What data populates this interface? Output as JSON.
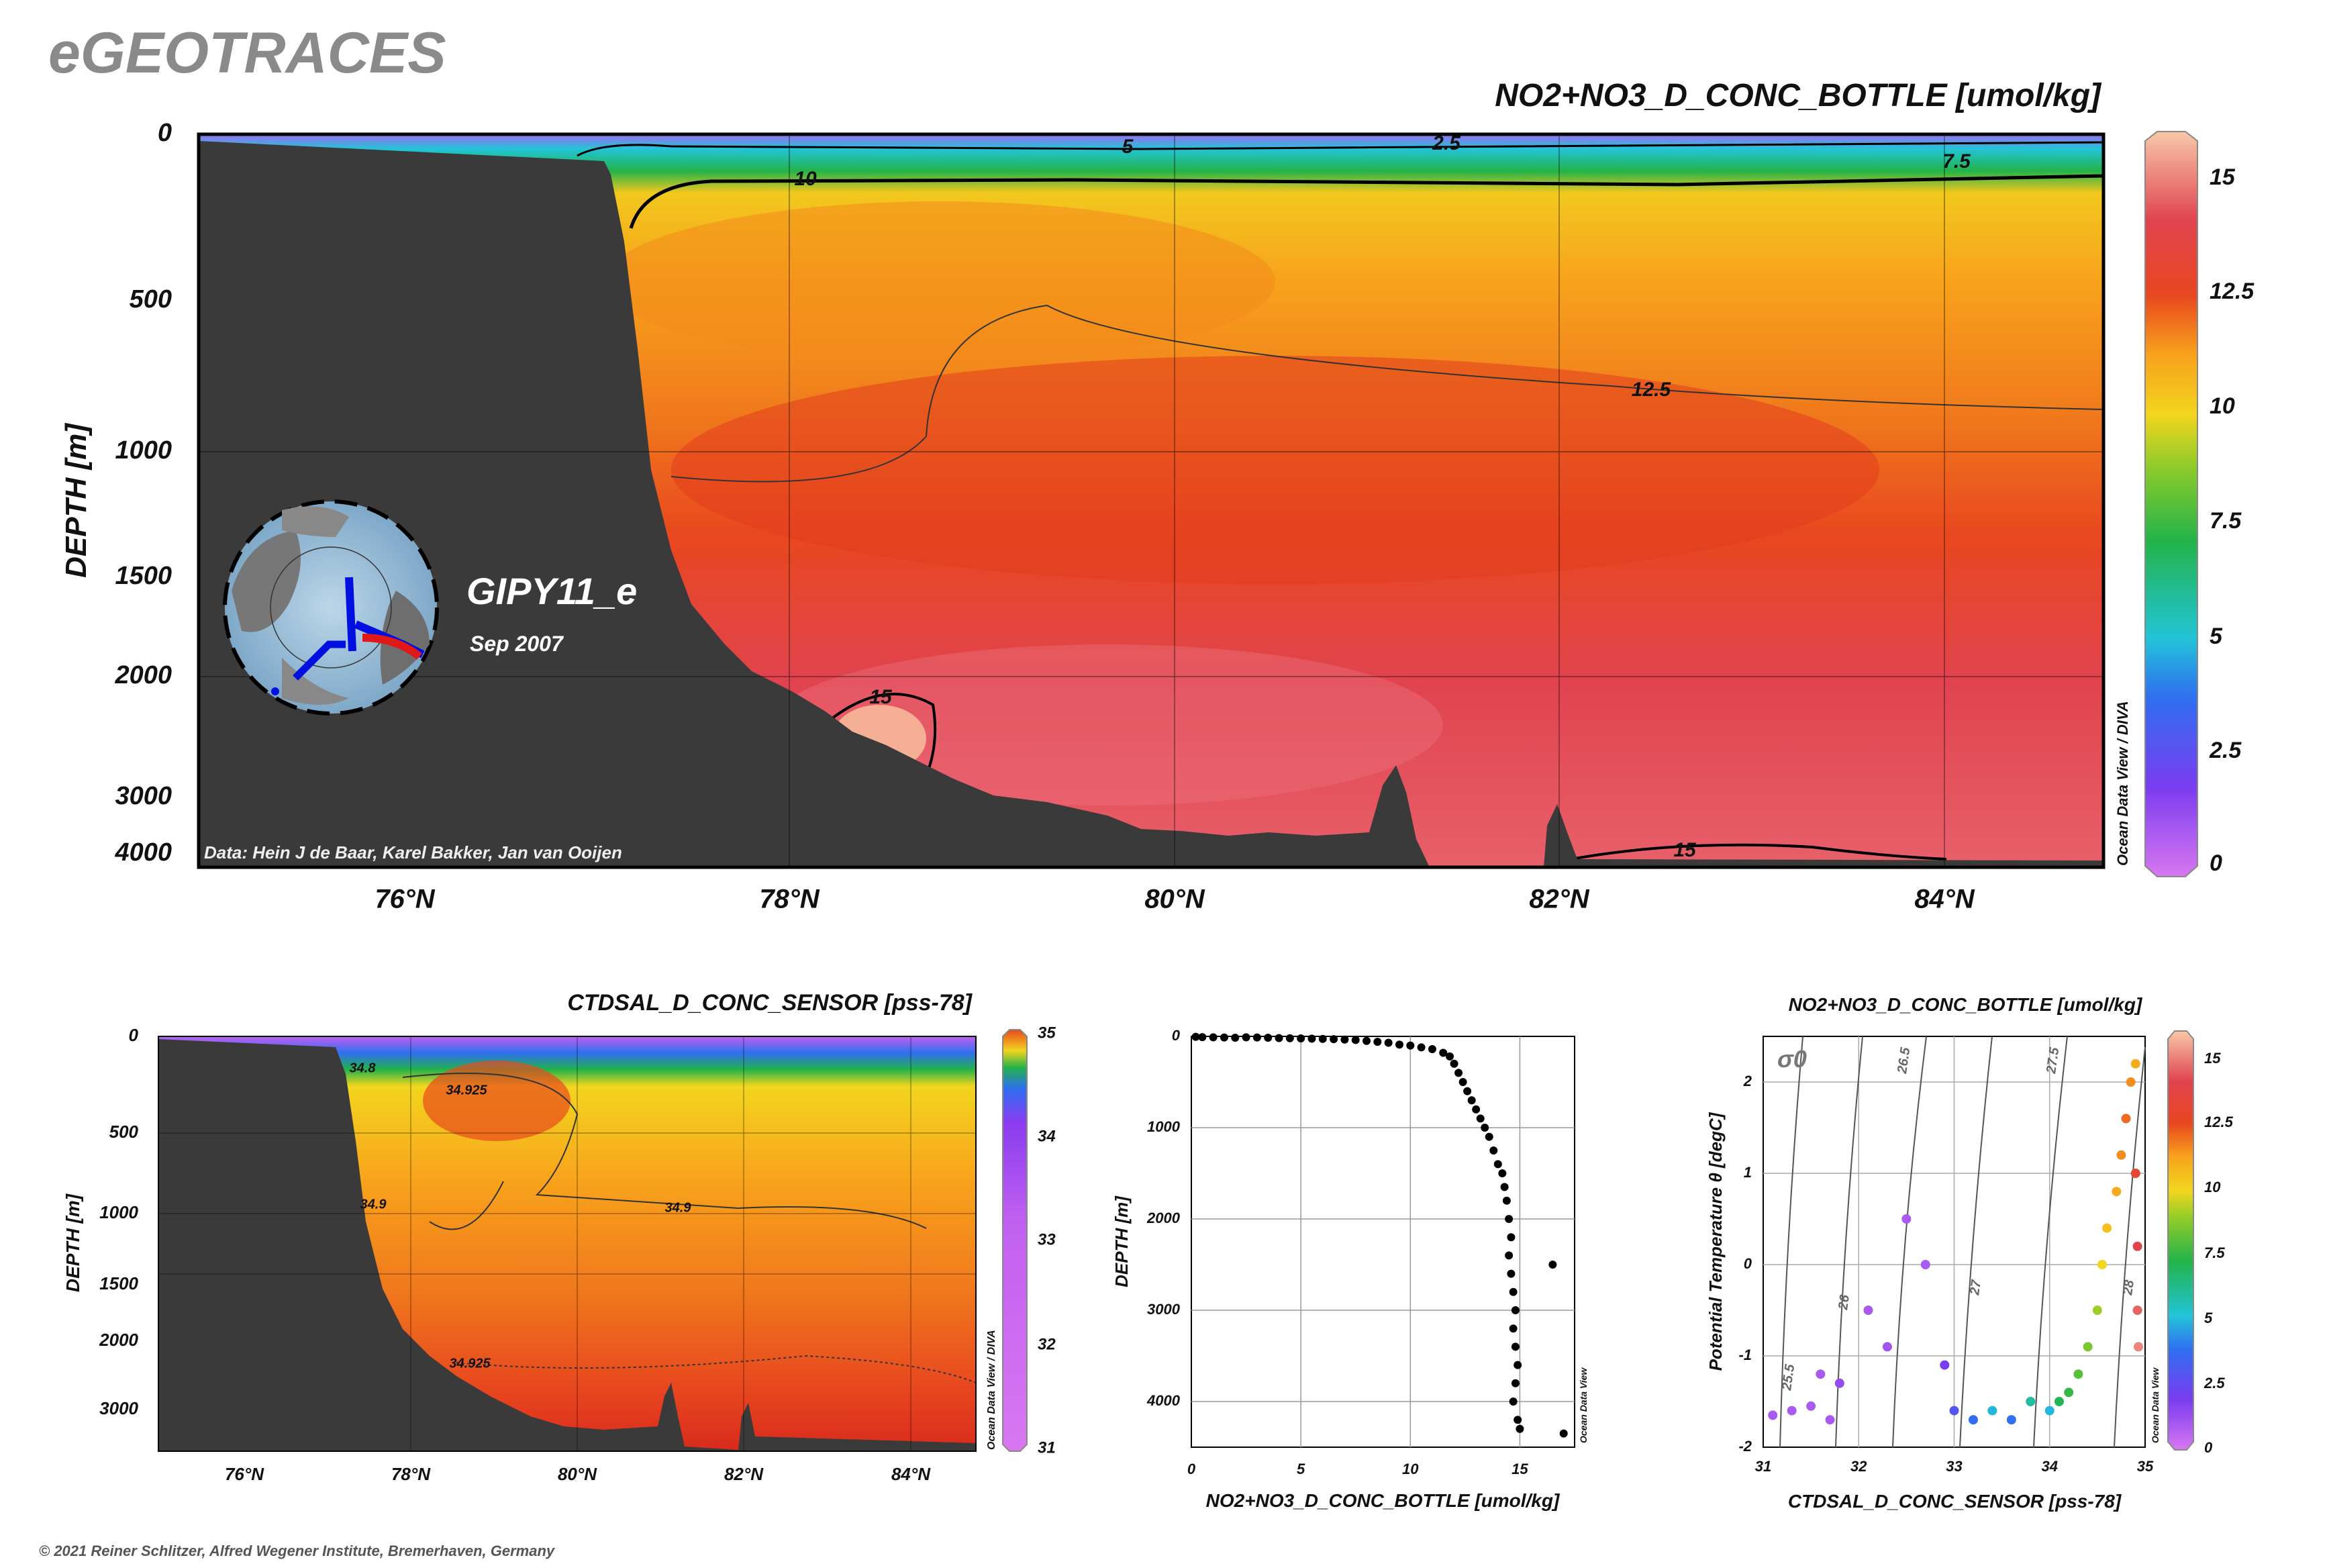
{
  "header": {
    "brand": "eGEOTRACES",
    "footer": "© 2021 Reiner Schlitzer, Alfred Wegener Institute, Bremerhaven, Germany"
  },
  "colors": {
    "seafloor": "#3a3a3a",
    "scale": [
      "#cc66ff",
      "#7a3cf0",
      "#2f6ff0",
      "#22c4d8",
      "#23b34a",
      "#8ecb2a",
      "#f2d51e",
      "#fbb41c",
      "#f58a1c",
      "#e8471f",
      "#e0434f",
      "#ef7a88",
      "#f8c8a8"
    ]
  },
  "chart_data": [
    {
      "type": "heatmap",
      "title": "NO2+NO3_D_CONC_BOTTLE [umol/kg]",
      "ylabel": "DEPTH [m]",
      "xlabel": "",
      "x_ticks": [
        "76°N",
        "78°N",
        "80°N",
        "82°N",
        "84°N"
      ],
      "y_ticks": [
        "0",
        "500",
        "1000",
        "1500",
        "2000",
        "3000",
        "4000"
      ],
      "colorbar": {
        "ticks": [
          "0",
          "2.5",
          "5",
          "7.5",
          "10",
          "12.5",
          "15"
        ],
        "range": [
          0,
          16
        ]
      },
      "contour_labels": [
        "5",
        "2.5",
        "7.5",
        "10",
        "12.5",
        "15",
        "15"
      ],
      "cruise": "GIPY11_e",
      "date": "Sep 2007",
      "credit": "Data: Hein J de Baar, Karel Bakker, Jan van Ooijen",
      "watermark": "Ocean Data View / DIVA"
    },
    {
      "type": "heatmap",
      "title": "CTDSAL_D_CONC_SENSOR [pss-78]",
      "ylabel": "DEPTH [m]",
      "xlabel": "",
      "x_ticks": [
        "76°N",
        "78°N",
        "80°N",
        "82°N",
        "84°N"
      ],
      "y_ticks": [
        "0",
        "500",
        "1000",
        "1500",
        "2000",
        "3000"
      ],
      "colorbar": {
        "ticks": [
          "31",
          "32",
          "33",
          "34",
          "35"
        ],
        "range": [
          31,
          35
        ]
      },
      "contour_labels": [
        "34.8",
        "34.925",
        "34.9",
        "34.9",
        "34.925"
      ],
      "watermark": "Ocean Data View / DIVA"
    },
    {
      "type": "scatter",
      "title": "",
      "xlabel": "NO2+NO3_D_CONC_BOTTLE [umol/kg]",
      "ylabel": "DEPTH [m]",
      "xlim": [
        0,
        17.5
      ],
      "x_ticks": [
        "0",
        "5",
        "10",
        "15"
      ],
      "y_ticks": [
        "0",
        "1000",
        "2000",
        "3000",
        "4000"
      ],
      "watermark": "Ocean Data View",
      "points": [
        [
          0.2,
          5
        ],
        [
          0.5,
          8
        ],
        [
          1,
          10
        ],
        [
          1.5,
          12
        ],
        [
          2,
          15
        ],
        [
          2.5,
          10
        ],
        [
          3,
          12
        ],
        [
          3.5,
          15
        ],
        [
          4,
          18
        ],
        [
          4.5,
          20
        ],
        [
          5,
          22
        ],
        [
          5.5,
          25
        ],
        [
          6,
          28
        ],
        [
          6.5,
          30
        ],
        [
          7,
          35
        ],
        [
          7.5,
          40
        ],
        [
          8,
          50
        ],
        [
          8.5,
          60
        ],
        [
          9,
          70
        ],
        [
          9.5,
          90
        ],
        [
          10,
          100
        ],
        [
          10.5,
          120
        ],
        [
          11,
          140
        ],
        [
          11.5,
          180
        ],
        [
          11.8,
          220
        ],
        [
          12,
          300
        ],
        [
          12.2,
          400
        ],
        [
          12.4,
          500
        ],
        [
          12.6,
          600
        ],
        [
          12.8,
          700
        ],
        [
          13,
          800
        ],
        [
          13.2,
          900
        ],
        [
          13.4,
          1000
        ],
        [
          13.6,
          1100
        ],
        [
          13.8,
          1250
        ],
        [
          14,
          1400
        ],
        [
          14.2,
          1500
        ],
        [
          14.3,
          1650
        ],
        [
          14.4,
          1800
        ],
        [
          14.5,
          2000
        ],
        [
          14.6,
          2200
        ],
        [
          14.5,
          2400
        ],
        [
          14.6,
          2600
        ],
        [
          14.7,
          2800
        ],
        [
          14.8,
          3000
        ],
        [
          14.7,
          3200
        ],
        [
          14.8,
          3400
        ],
        [
          14.9,
          3600
        ],
        [
          14.8,
          3800
        ],
        [
          14.7,
          4000
        ],
        [
          14.9,
          4200
        ],
        [
          15,
          4300
        ],
        [
          16.5,
          2500
        ],
        [
          17,
          4350
        ]
      ]
    },
    {
      "type": "scatter",
      "title": "NO2+NO3_D_CONC_BOTTLE [umol/kg]",
      "xlabel": "CTDSAL_D_CONC_SENSOR [pss-78]",
      "ylabel": "Potential Temperature θ [degC]",
      "xlim": [
        31,
        35
      ],
      "ylim": [
        -2,
        2.5
      ],
      "x_ticks": [
        "31",
        "32",
        "33",
        "34",
        "35"
      ],
      "y_ticks": [
        "-2",
        "-1",
        "0",
        "1",
        "2"
      ],
      "isopycnal_label": "σ0",
      "isopycnals": [
        "25.5",
        "26",
        "26.5",
        "27",
        "27.5",
        "28"
      ],
      "colorbar": {
        "ticks": [
          "0",
          "2.5",
          "5",
          "7.5",
          "10",
          "12.5",
          "15"
        ],
        "range": [
          0,
          16
        ]
      },
      "watermark": "Ocean Data View",
      "points": [
        {
          "s": 31.1,
          "t": -1.65,
          "n": 1
        },
        {
          "s": 31.3,
          "t": -1.6,
          "n": 1
        },
        {
          "s": 31.5,
          "t": -1.55,
          "n": 1
        },
        {
          "s": 31.7,
          "t": -1.7,
          "n": 1
        },
        {
          "s": 31.6,
          "t": -1.2,
          "n": 1
        },
        {
          "s": 31.8,
          "t": -1.3,
          "n": 1.5
        },
        {
          "s": 32.1,
          "t": -0.5,
          "n": 1
        },
        {
          "s": 32.3,
          "t": -0.9,
          "n": 1.2
        },
        {
          "s": 32.5,
          "t": 0.5,
          "n": 1
        },
        {
          "s": 32.7,
          "t": 0,
          "n": 1
        },
        {
          "s": 32.9,
          "t": -1.1,
          "n": 2
        },
        {
          "s": 33.0,
          "t": -1.6,
          "n": 3
        },
        {
          "s": 33.2,
          "t": -1.7,
          "n": 4
        },
        {
          "s": 33.4,
          "t": -1.6,
          "n": 5
        },
        {
          "s": 33.6,
          "t": -1.7,
          "n": 4
        },
        {
          "s": 33.8,
          "t": -1.5,
          "n": 6
        },
        {
          "s": 34.0,
          "t": -1.6,
          "n": 5
        },
        {
          "s": 34.1,
          "t": -1.5,
          "n": 7
        },
        {
          "s": 34.2,
          "t": -1.4,
          "n": 7.5
        },
        {
          "s": 34.3,
          "t": -1.2,
          "n": 8
        },
        {
          "s": 34.4,
          "t": -0.9,
          "n": 8.5
        },
        {
          "s": 34.5,
          "t": -0.5,
          "n": 9
        },
        {
          "s": 34.55,
          "t": 0,
          "n": 10
        },
        {
          "s": 34.6,
          "t": 0.4,
          "n": 10.5
        },
        {
          "s": 34.7,
          "t": 0.8,
          "n": 11
        },
        {
          "s": 34.75,
          "t": 1.2,
          "n": 11.5
        },
        {
          "s": 34.8,
          "t": 1.6,
          "n": 12
        },
        {
          "s": 34.85,
          "t": 2.0,
          "n": 11.5
        },
        {
          "s": 34.9,
          "t": 2.2,
          "n": 11
        },
        {
          "s": 34.9,
          "t": 1.0,
          "n": 13
        },
        {
          "s": 34.92,
          "t": 0.2,
          "n": 14
        },
        {
          "s": 34.92,
          "t": -0.5,
          "n": 14.5
        },
        {
          "s": 34.93,
          "t": -0.9,
          "n": 15
        }
      ]
    }
  ]
}
